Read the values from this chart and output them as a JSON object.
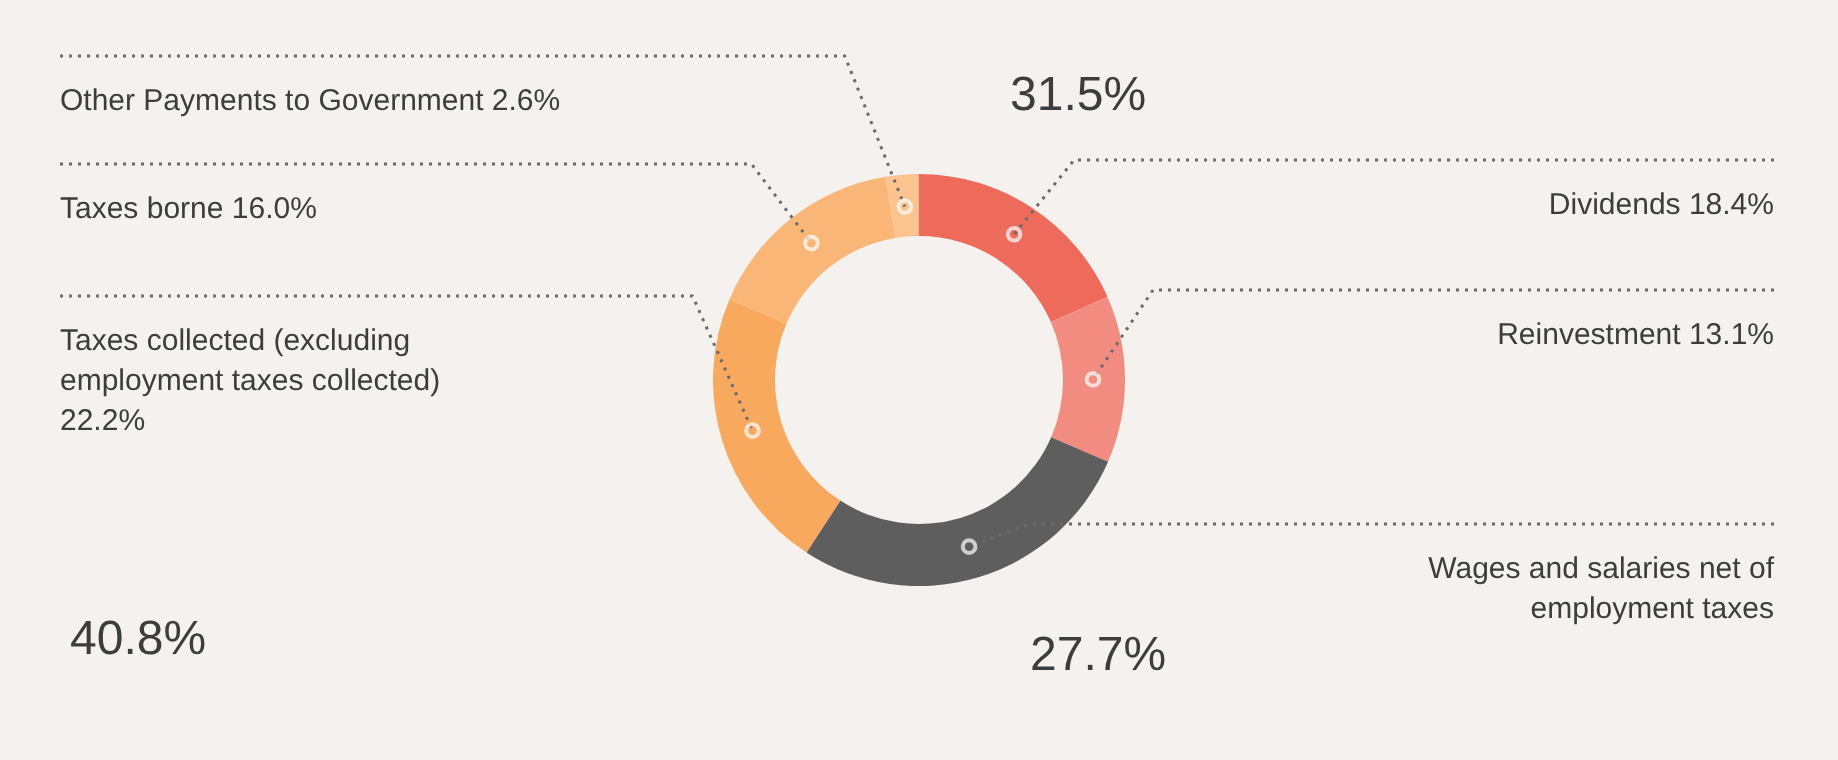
{
  "chart_data": {
    "type": "donut",
    "categories": [
      "Dividends",
      "Reinvestment",
      "Wages and salaries net of employment taxes",
      "Taxes collected (excluding employment taxes collected)",
      "Taxes borne",
      "Other Payments to Government"
    ],
    "values": [
      18.4,
      13.1,
      27.7,
      22.2,
      16.0,
      2.6
    ],
    "value_labels": [
      "18.4%",
      "13.1%",
      null,
      "22.2%",
      "16.0%",
      "2.6%"
    ],
    "colors": [
      "#ee6b5c",
      "#f28c80",
      "#5e5e5e",
      "#f9a95e",
      "#fab676",
      "#fbc38d"
    ],
    "annotations": [
      "31.5%",
      "27.7%",
      "40.8%"
    ]
  }
}
